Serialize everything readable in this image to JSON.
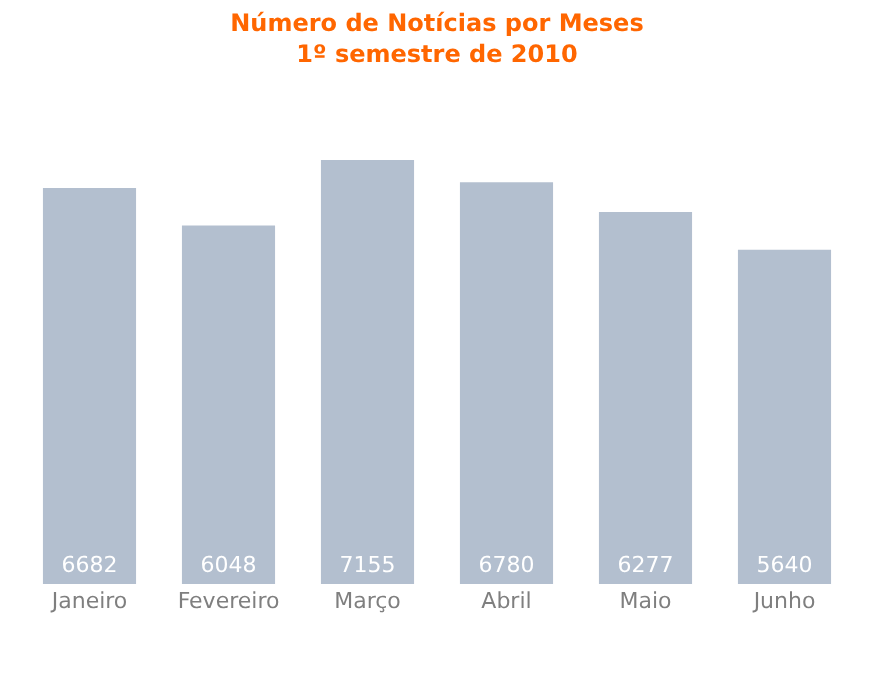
{
  "chart_data": {
    "type": "bar",
    "title": "Número de Notícias por Meses\n1º semestre de 2010",
    "categories": [
      "Janeiro",
      "Fevereiro",
      "Março",
      "Abril",
      "Maio",
      "Junho"
    ],
    "values": [
      6682,
      6048,
      7155,
      6780,
      6277,
      5640
    ],
    "color": "#b3bfcf",
    "data_labels": true
  }
}
